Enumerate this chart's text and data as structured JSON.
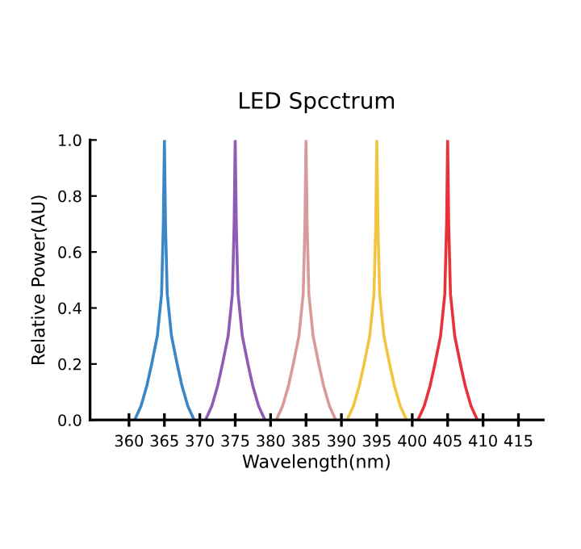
{
  "chart_data": {
    "type": "line",
    "title": "LED Spcctrum",
    "xlabel": "Wavelength(nm)",
    "ylabel": "Relative Power(AU)",
    "series": [
      {
        "color": "#3a87c8",
        "x": [
          360.8,
          361.7,
          362.5,
          363.2,
          364,
          364.6,
          364.85,
          365,
          365.15,
          365.4,
          366,
          366.8,
          367.5,
          368.3,
          369.2
        ],
        "values": [
          0,
          0.05,
          0.12,
          0.2,
          0.3,
          0.45,
          0.7,
          1,
          0.7,
          0.45,
          0.3,
          0.2,
          0.12,
          0.05,
          0
        ]
      },
      {
        "color": "#8e5bb5",
        "x": [
          370.8,
          371.7,
          372.5,
          373.2,
          374,
          374.6,
          374.85,
          375,
          375.15,
          375.4,
          376,
          376.8,
          377.5,
          378.3,
          379.2
        ],
        "values": [
          0,
          0.05,
          0.12,
          0.2,
          0.3,
          0.45,
          0.7,
          1,
          0.7,
          0.45,
          0.3,
          0.2,
          0.12,
          0.05,
          0
        ]
      },
      {
        "color": "#d99a9a",
        "x": [
          380.8,
          381.7,
          382.5,
          383.2,
          384,
          384.6,
          384.85,
          385,
          385.15,
          385.4,
          386,
          386.8,
          387.5,
          388.3,
          389.2
        ],
        "values": [
          0,
          0.05,
          0.12,
          0.2,
          0.3,
          0.45,
          0.7,
          1,
          0.7,
          0.45,
          0.3,
          0.2,
          0.12,
          0.05,
          0
        ]
      },
      {
        "color": "#f2c440",
        "x": [
          390.8,
          391.7,
          392.5,
          393.2,
          394,
          394.6,
          394.85,
          395,
          395.15,
          395.4,
          396,
          396.8,
          397.5,
          398.3,
          399.2
        ],
        "values": [
          0,
          0.05,
          0.12,
          0.2,
          0.3,
          0.45,
          0.7,
          1,
          0.7,
          0.45,
          0.3,
          0.2,
          0.12,
          0.05,
          0
        ]
      },
      {
        "color": "#e8323a",
        "x": [
          400.8,
          401.7,
          402.5,
          403.2,
          404,
          404.6,
          404.85,
          405,
          405.15,
          405.4,
          406,
          406.8,
          407.5,
          408.3,
          409.2
        ],
        "values": [
          0,
          0.05,
          0.12,
          0.2,
          0.3,
          0.45,
          0.7,
          1,
          0.7,
          0.45,
          0.3,
          0.2,
          0.12,
          0.05,
          0
        ]
      }
    ],
    "xlim": [
      354.5,
      418.5
    ],
    "xticks": [
      360,
      365,
      370,
      375,
      380,
      385,
      390,
      395,
      400,
      405,
      410,
      415
    ],
    "ylim": [
      0,
      1.0
    ],
    "yticks": [
      {
        "value": 0,
        "label": "0.0"
      },
      0.2,
      0.4,
      0.6,
      0.8,
      {
        "value": 1.0,
        "label": "1.0"
      }
    ],
    "grid": false,
    "marker": "none",
    "line_style": "solid"
  }
}
